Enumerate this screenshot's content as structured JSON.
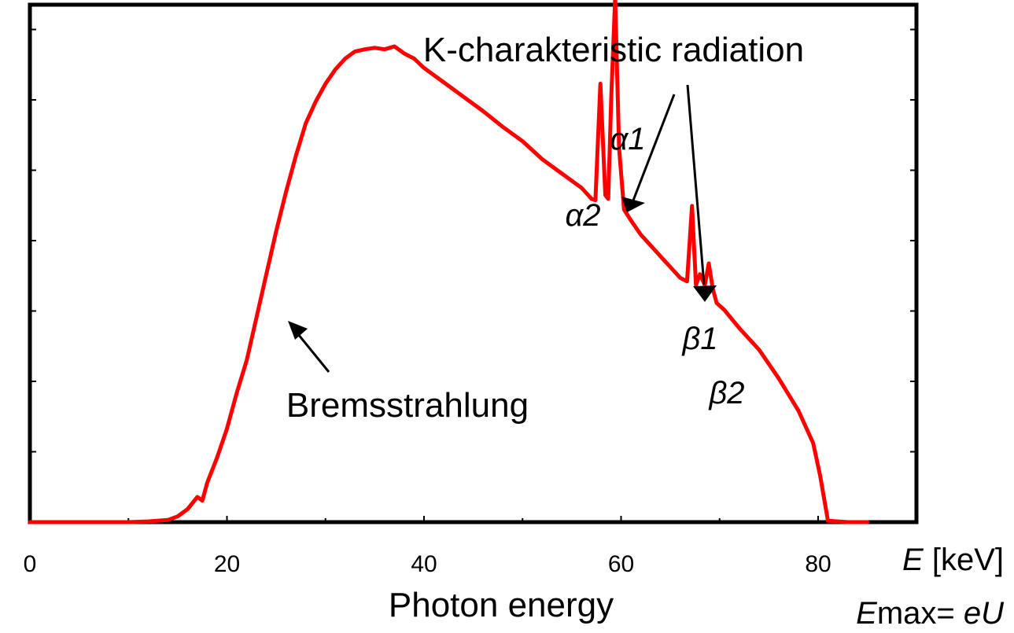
{
  "chart_data": {
    "type": "line",
    "xlabel": "Photon energy",
    "x_unit_label": "E [keV]",
    "x_unit_var": "E",
    "x_unit_rest": " [keV]",
    "emax_var": "E",
    "emax_rest": "max= ",
    "emax_expr": "eU",
    "ylabel": "",
    "xlim": [
      0,
      90
    ],
    "ylim": [
      0,
      7.2
    ],
    "x_ticks": [
      0,
      20,
      40,
      60,
      80
    ],
    "x_tick_labels": [
      "0",
      "20",
      "40",
      "60",
      "80"
    ],
    "y_ticks": [
      1,
      2,
      3,
      4,
      5,
      6,
      7
    ],
    "grid": false,
    "series": [
      {
        "color": "#ff0000",
        "x": [
          0,
          10,
          12,
          14,
          15,
          16,
          17,
          17.5,
          18,
          19,
          20,
          21,
          22,
          23,
          24,
          25,
          26,
          27,
          28,
          29,
          30,
          31,
          32,
          33,
          34,
          35,
          36,
          37,
          38,
          39,
          40,
          42,
          44,
          46,
          48,
          50,
          52,
          54,
          56,
          57,
          57.4,
          57.9,
          58.4,
          58.7,
          59.0,
          59.4,
          59.8,
          60.3,
          61,
          62,
          63,
          64,
          65,
          66,
          66.7,
          67.2,
          67.6,
          68.0,
          68.5,
          68.9,
          69.3,
          69.7,
          70.5,
          72,
          74,
          76,
          78,
          79.5,
          80.2,
          81,
          83,
          85
        ],
        "y": [
          0,
          0,
          0.01,
          0.03,
          0.08,
          0.18,
          0.35,
          0.3,
          0.55,
          0.9,
          1.3,
          1.8,
          2.25,
          2.85,
          3.45,
          4.05,
          4.6,
          5.1,
          5.55,
          5.85,
          6.1,
          6.3,
          6.45,
          6.55,
          6.58,
          6.6,
          6.58,
          6.62,
          6.52,
          6.45,
          6.32,
          6.12,
          5.92,
          5.72,
          5.5,
          5.3,
          5.05,
          4.85,
          4.65,
          4.5,
          4.48,
          6.1,
          4.55,
          4.5,
          5.9,
          7.3,
          5.2,
          4.35,
          4.2,
          4.0,
          3.85,
          3.7,
          3.55,
          3.4,
          3.35,
          4.4,
          3.3,
          3.45,
          3.3,
          3.6,
          3.25,
          3.05,
          2.95,
          2.7,
          2.4,
          2.0,
          1.55,
          1.1,
          0.65,
          0.02,
          0,
          0
        ]
      }
    ],
    "annotations": {
      "k_label": "K-charakteristic radiation",
      "alpha1": "α1",
      "alpha2": "α2",
      "beta1": "β1",
      "beta2": "β2",
      "brems": "Bremsstrahlung"
    }
  }
}
